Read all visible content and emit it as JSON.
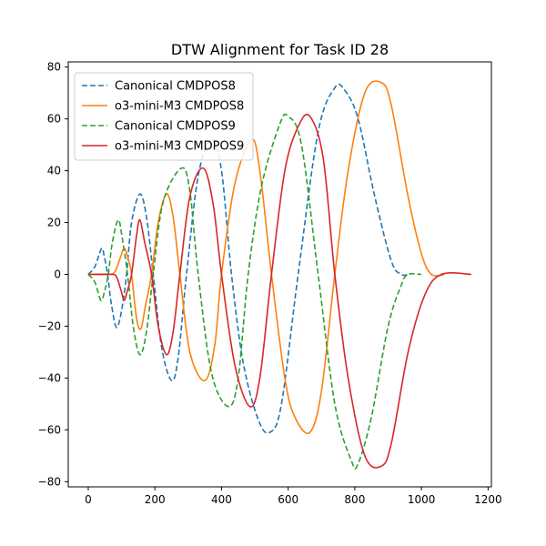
{
  "chart_data": {
    "type": "line",
    "title": "DTW Alignment for Task ID 28",
    "xlabel": "",
    "ylabel": "",
    "xlim": [
      -60,
      1210
    ],
    "ylim": [
      -82,
      82
    ],
    "xticks": [
      0,
      200,
      400,
      600,
      800,
      1000,
      1200
    ],
    "yticks": [
      -80,
      -60,
      -40,
      -20,
      0,
      20,
      40,
      60,
      80
    ],
    "grid": false,
    "legend_position": "top-left",
    "series": [
      {
        "name": "Canonical CMDPOS8",
        "color": "#1f77b4",
        "dash": "dashed",
        "points": [
          [
            0,
            0
          ],
          [
            20,
            3
          ],
          [
            40,
            10
          ],
          [
            48,
            7
          ],
          [
            58,
            0
          ],
          [
            70,
            -12
          ],
          [
            85,
            -20.5
          ],
          [
            100,
            -14
          ],
          [
            115,
            0
          ],
          [
            130,
            20
          ],
          [
            155,
            31
          ],
          [
            175,
            22
          ],
          [
            195,
            0
          ],
          [
            220,
            -28
          ],
          [
            250,
            -41
          ],
          [
            270,
            -32
          ],
          [
            295,
            0
          ],
          [
            330,
            38
          ],
          [
            370,
            52
          ],
          [
            400,
            40
          ],
          [
            430,
            0
          ],
          [
            465,
            -34
          ],
          [
            510,
            -56
          ],
          [
            545,
            -61
          ],
          [
            580,
            -50
          ],
          [
            630,
            0
          ],
          [
            690,
            55
          ],
          [
            740,
            72
          ],
          [
            770,
            71
          ],
          [
            810,
            60
          ],
          [
            860,
            30
          ],
          [
            910,
            5
          ],
          [
            940,
            0
          ],
          [
            960,
            0
          ]
        ]
      },
      {
        "name": "o3-mini-M3 CMDPOS8",
        "color": "#ff7f0e",
        "dash": "solid",
        "points": [
          [
            0,
            0
          ],
          [
            60,
            0
          ],
          [
            80,
            1
          ],
          [
            95,
            6
          ],
          [
            108,
            10
          ],
          [
            120,
            6
          ],
          [
            130,
            0
          ],
          [
            145,
            -17
          ],
          [
            158,
            -21
          ],
          [
            172,
            -12
          ],
          [
            190,
            0
          ],
          [
            210,
            20
          ],
          [
            235,
            31
          ],
          [
            255,
            22
          ],
          [
            275,
            0
          ],
          [
            305,
            -30
          ],
          [
            350,
            -41
          ],
          [
            380,
            -27
          ],
          [
            400,
            0
          ],
          [
            440,
            35
          ],
          [
            490,
            52
          ],
          [
            515,
            40
          ],
          [
            550,
            0
          ],
          [
            590,
            -40
          ],
          [
            620,
            -55
          ],
          [
            665,
            -61
          ],
          [
            700,
            -45
          ],
          [
            740,
            0
          ],
          [
            780,
            40
          ],
          [
            830,
            70
          ],
          [
            880,
            74
          ],
          [
            910,
            65
          ],
          [
            960,
            30
          ],
          [
            1000,
            8
          ],
          [
            1030,
            0
          ],
          [
            1070,
            0
          ]
        ]
      },
      {
        "name": "Canonical CMDPOS9",
        "color": "#2ca02c",
        "dash": "dashed",
        "points": [
          [
            0,
            0
          ],
          [
            20,
            -3
          ],
          [
            38,
            -10
          ],
          [
            50,
            -6
          ],
          [
            60,
            0
          ],
          [
            72,
            12
          ],
          [
            90,
            21
          ],
          [
            102,
            14
          ],
          [
            118,
            0
          ],
          [
            135,
            -20
          ],
          [
            155,
            -31
          ],
          [
            175,
            -22
          ],
          [
            195,
            0
          ],
          [
            225,
            28
          ],
          [
            280,
            41
          ],
          [
            305,
            32
          ],
          [
            330,
            0
          ],
          [
            370,
            -38
          ],
          [
            420,
            -51
          ],
          [
            450,
            -40
          ],
          [
            480,
            0
          ],
          [
            520,
            34
          ],
          [
            575,
            58
          ],
          [
            600,
            61
          ],
          [
            640,
            50
          ],
          [
            690,
            0
          ],
          [
            740,
            -50
          ],
          [
            790,
            -72
          ],
          [
            810,
            -73
          ],
          [
            850,
            -55
          ],
          [
            900,
            -20
          ],
          [
            940,
            -4
          ],
          [
            960,
            0
          ],
          [
            1000,
            0
          ]
        ]
      },
      {
        "name": "o3-mini-M3 CMDPOS9",
        "color": "#d62728",
        "dash": "solid",
        "points": [
          [
            0,
            0
          ],
          [
            70,
            0
          ],
          [
            85,
            -1
          ],
          [
            98,
            -6
          ],
          [
            108,
            -10
          ],
          [
            118,
            -6
          ],
          [
            130,
            0
          ],
          [
            145,
            15
          ],
          [
            155,
            21
          ],
          [
            170,
            12
          ],
          [
            190,
            0
          ],
          [
            210,
            -20
          ],
          [
            235,
            -31
          ],
          [
            255,
            -22
          ],
          [
            275,
            0
          ],
          [
            305,
            30
          ],
          [
            345,
            41
          ],
          [
            375,
            27
          ],
          [
            400,
            0
          ],
          [
            440,
            -35
          ],
          [
            485,
            -51
          ],
          [
            515,
            -40
          ],
          [
            550,
            0
          ],
          [
            590,
            40
          ],
          [
            630,
            57
          ],
          [
            665,
            61
          ],
          [
            705,
            45
          ],
          [
            740,
            0
          ],
          [
            780,
            -40
          ],
          [
            830,
            -70
          ],
          [
            880,
            -74
          ],
          [
            910,
            -65
          ],
          [
            960,
            -30
          ],
          [
            1010,
            -8
          ],
          [
            1060,
            0
          ],
          [
            1150,
            0
          ]
        ]
      }
    ]
  }
}
